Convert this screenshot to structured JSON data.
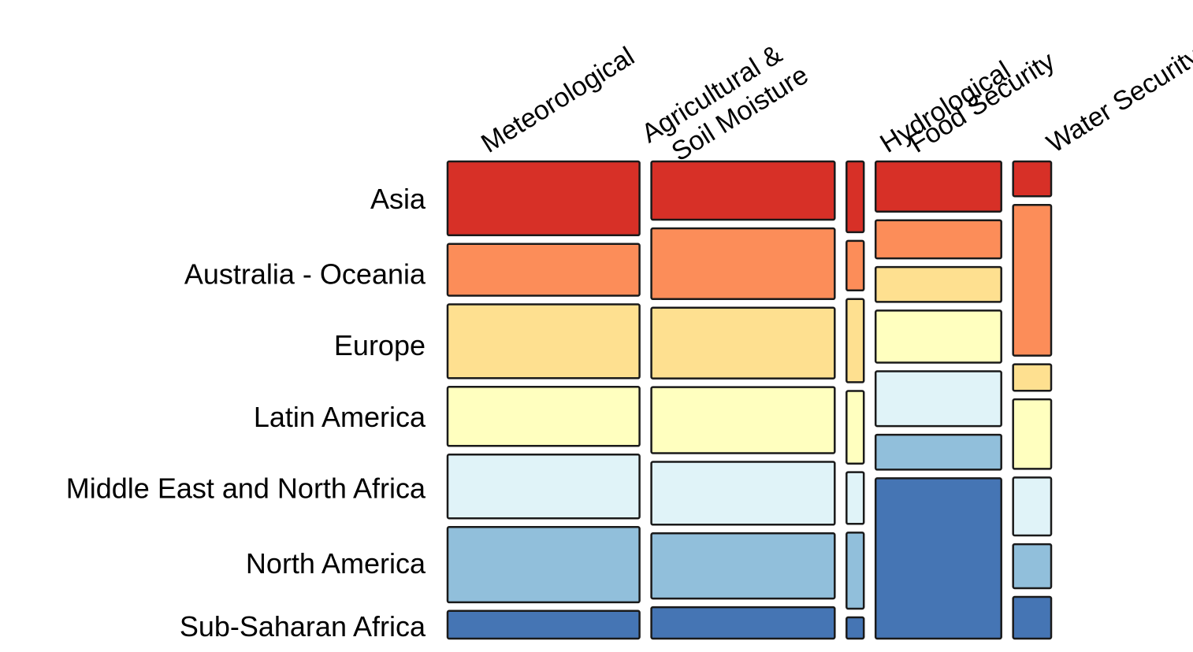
{
  "chart_data": {
    "type": "mosaic",
    "title": "",
    "categories": [
      "Asia",
      "Australia - Oceania",
      "Europe",
      "Latin America",
      "Middle East and North Africa",
      "North America",
      "Sub-Saharan Africa"
    ],
    "colors": {
      "Asia": "#d73027",
      "Australia - Oceania": "#fc8d59",
      "Europe": "#fee090",
      "Latin America": "#ffffbf",
      "Middle East and North Africa": "#e0f3f8",
      "North America": "#91bfdb",
      "Sub-Saharan Africa": "#4575b4"
    },
    "series": [
      {
        "name": "Meteorological",
        "label_lines": [
          "Meteorological"
        ],
        "width_share": 0.333,
        "shares": [
          0.16,
          0.112,
          0.16,
          0.128,
          0.138,
          0.163,
          0.06
        ]
      },
      {
        "name": "Agricultural & Soil Moisture",
        "label_lines": [
          "Agricultural &",
          "Soil Moisture"
        ],
        "width_share": 0.318,
        "shares": [
          0.126,
          0.153,
          0.153,
          0.143,
          0.136,
          0.141,
          0.068
        ]
      },
      {
        "name": "Hydrological",
        "label_lines": [
          "Hydrological"
        ],
        "width_share": 0.03,
        "shares": [
          0.16,
          0.112,
          0.188,
          0.164,
          0.117,
          0.172,
          0.048
        ]
      },
      {
        "name": "Food Security",
        "label_lines": [
          "Food Security"
        ],
        "width_share": 0.218,
        "shares": [
          0.108,
          0.082,
          0.075,
          0.112,
          0.118,
          0.075,
          0.345
        ]
      },
      {
        "name": "Water Security",
        "label_lines": [
          "Water Security"
        ],
        "width_share": 0.066,
        "shares": [
          0.075,
          0.325,
          0.057,
          0.15,
          0.125,
          0.095,
          0.09
        ]
      }
    ],
    "row_label_positions_share": [
      0.079,
      0.237,
      0.386,
      0.536,
      0.686,
      0.843,
      0.975
    ],
    "legend": "none",
    "grid": false
  }
}
